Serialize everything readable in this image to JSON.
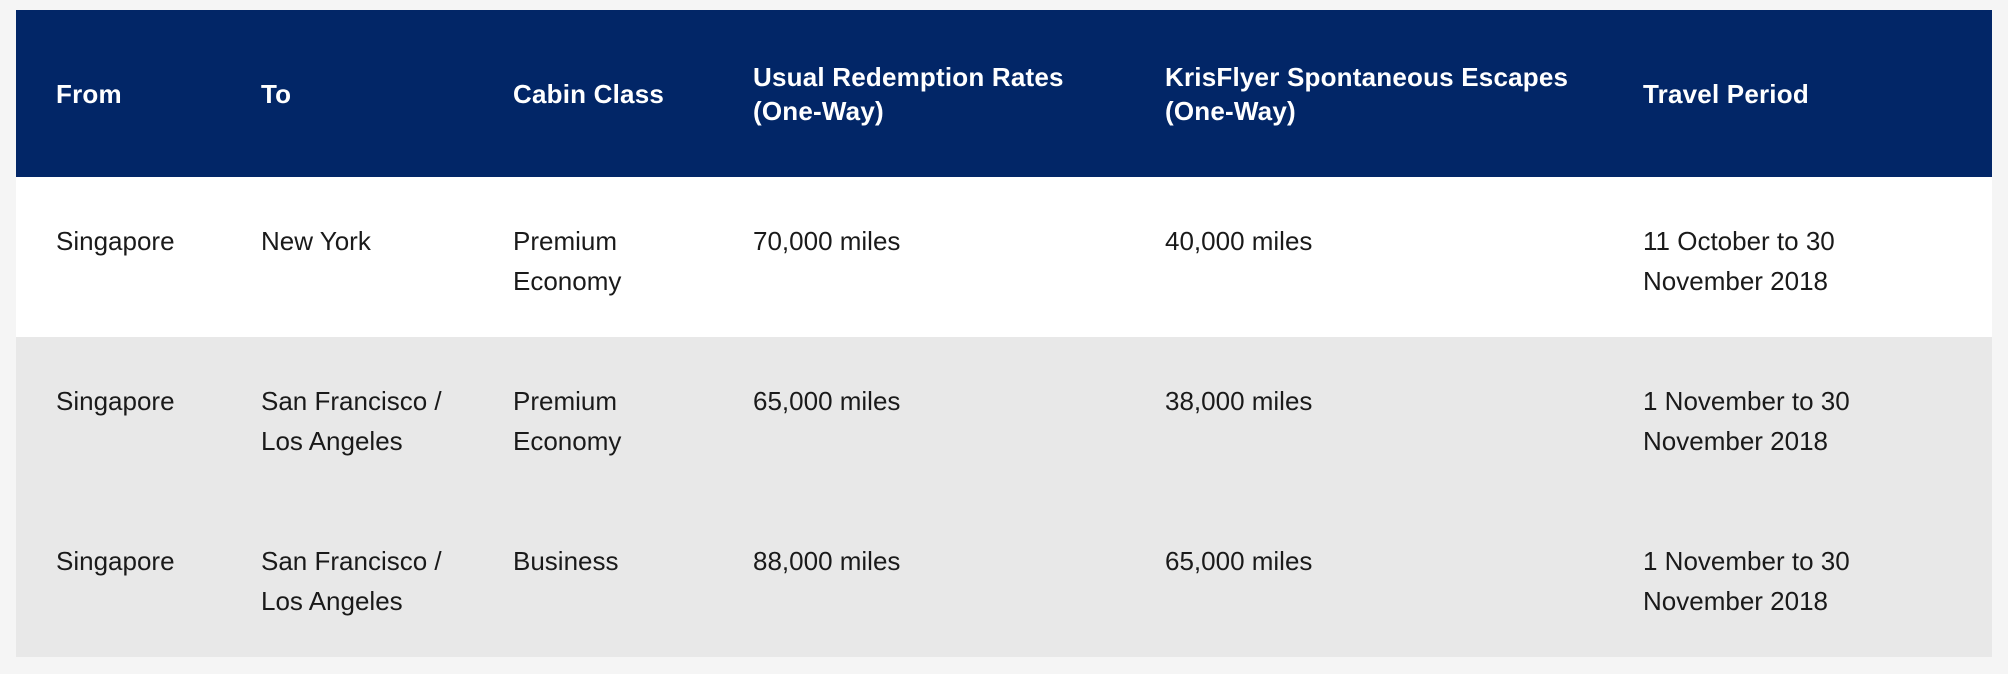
{
  "table": {
    "headers": [
      "From",
      "To",
      "Cabin Class",
      "Usual Redemption Rates (One-Way)",
      "KrisFlyer Spontaneous Escapes (One-Way)",
      "Travel Period"
    ],
    "rows": [
      [
        "Singapore",
        "New York",
        "Premium Economy",
        "70,000 miles",
        "40,000 miles",
        "11 October to 30 November 2018"
      ],
      [
        "Singapore",
        "San Francisco / Los Angeles",
        "Premium Economy",
        "65,000 miles",
        "38,000 miles",
        "1 November to 30 November 2018"
      ],
      [
        "Singapore",
        "San Francisco / Los Angeles",
        "Business",
        "88,000 miles",
        "65,000 miles",
        "1 November to 30 November 2018"
      ]
    ]
  },
  "colors": {
    "header_bg": "#022667",
    "header_text": "#ffffff",
    "row_white": "#ffffff",
    "row_gray": "#e8e8e8",
    "body_text": "#1a1a1a"
  }
}
